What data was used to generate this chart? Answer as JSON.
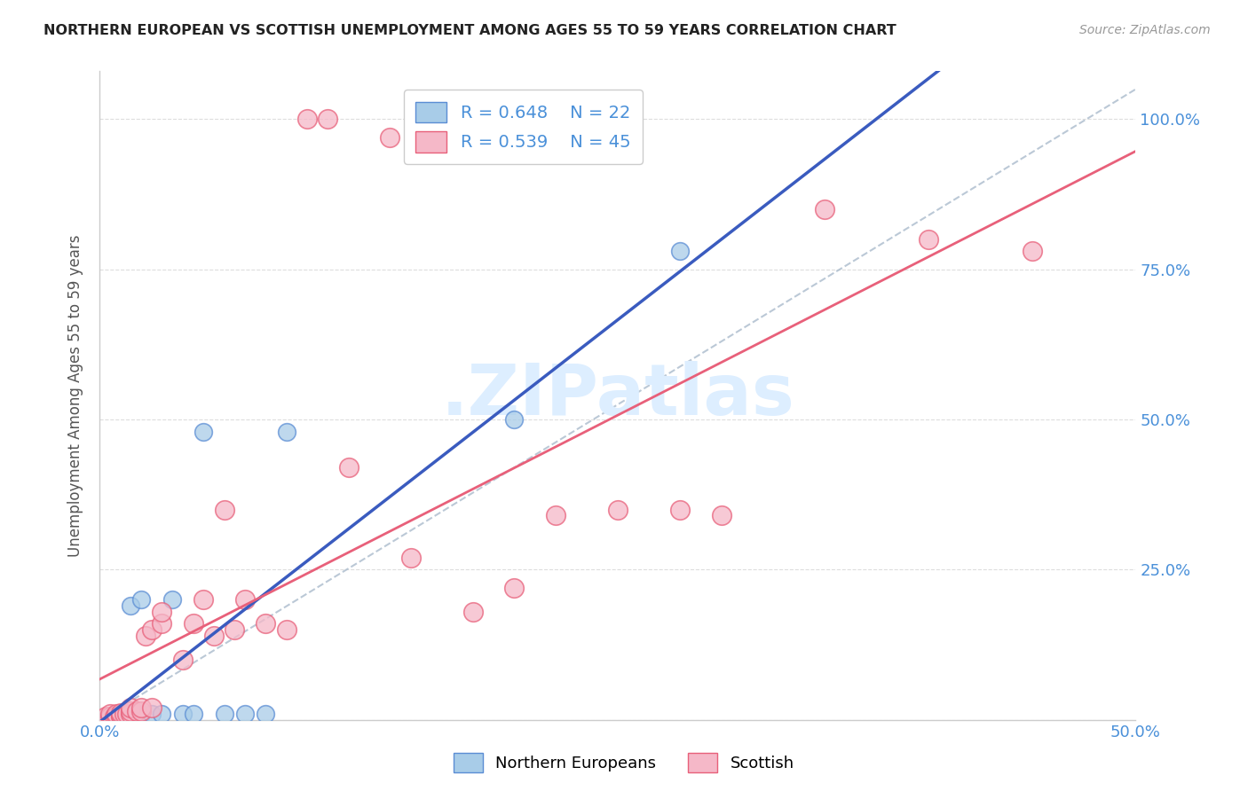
{
  "title": "NORTHERN EUROPEAN VS SCOTTISH UNEMPLOYMENT AMONG AGES 55 TO 59 YEARS CORRELATION CHART",
  "source": "Source: ZipAtlas.com",
  "ylabel": "Unemployment Among Ages 55 to 59 years",
  "xlim": [
    0.0,
    0.5
  ],
  "ylim": [
    0.0,
    1.08
  ],
  "legend_r_blue": "R = 0.648",
  "legend_n_blue": "N = 22",
  "legend_r_pink": "R = 0.539",
  "legend_n_pink": "N = 45",
  "blue_color": "#a8cce8",
  "pink_color": "#f5b8c8",
  "blue_edge_color": "#5b8dd4",
  "pink_edge_color": "#e8607a",
  "blue_line_color": "#3a5bbf",
  "pink_line_color": "#e8607a",
  "dashed_line_color": "#aabbcc",
  "watermark_color": "#ddeeff",
  "background_color": "#ffffff",
  "grid_color": "#dddddd",
  "ne_x": [
    0.005,
    0.008,
    0.01,
    0.01,
    0.012,
    0.015,
    0.015,
    0.018,
    0.02,
    0.02,
    0.025,
    0.03,
    0.035,
    0.04,
    0.045,
    0.05,
    0.06,
    0.07,
    0.08,
    0.09,
    0.2,
    0.28
  ],
  "ne_y": [
    0.005,
    0.01,
    0.005,
    0.01,
    0.01,
    0.01,
    0.19,
    0.01,
    0.01,
    0.2,
    0.01,
    0.01,
    0.2,
    0.01,
    0.01,
    0.48,
    0.01,
    0.01,
    0.01,
    0.48,
    0.5,
    0.78
  ],
  "sc_x": [
    0.003,
    0.005,
    0.005,
    0.007,
    0.008,
    0.008,
    0.01,
    0.01,
    0.01,
    0.012,
    0.013,
    0.015,
    0.015,
    0.015,
    0.018,
    0.02,
    0.02,
    0.022,
    0.025,
    0.025,
    0.03,
    0.03,
    0.04,
    0.045,
    0.05,
    0.055,
    0.06,
    0.065,
    0.07,
    0.08,
    0.09,
    0.1,
    0.11,
    0.12,
    0.14,
    0.15,
    0.18,
    0.2,
    0.22,
    0.25,
    0.28,
    0.3,
    0.35,
    0.4,
    0.45
  ],
  "sc_y": [
    0.005,
    0.005,
    0.01,
    0.005,
    0.005,
    0.01,
    0.005,
    0.008,
    0.012,
    0.01,
    0.01,
    0.01,
    0.015,
    0.02,
    0.015,
    0.015,
    0.02,
    0.14,
    0.02,
    0.15,
    0.16,
    0.18,
    0.1,
    0.16,
    0.2,
    0.14,
    0.35,
    0.15,
    0.2,
    0.16,
    0.15,
    1.0,
    1.0,
    0.42,
    0.97,
    0.27,
    0.18,
    0.22,
    0.34,
    0.35,
    0.35,
    0.34,
    0.85,
    0.8,
    0.78
  ]
}
